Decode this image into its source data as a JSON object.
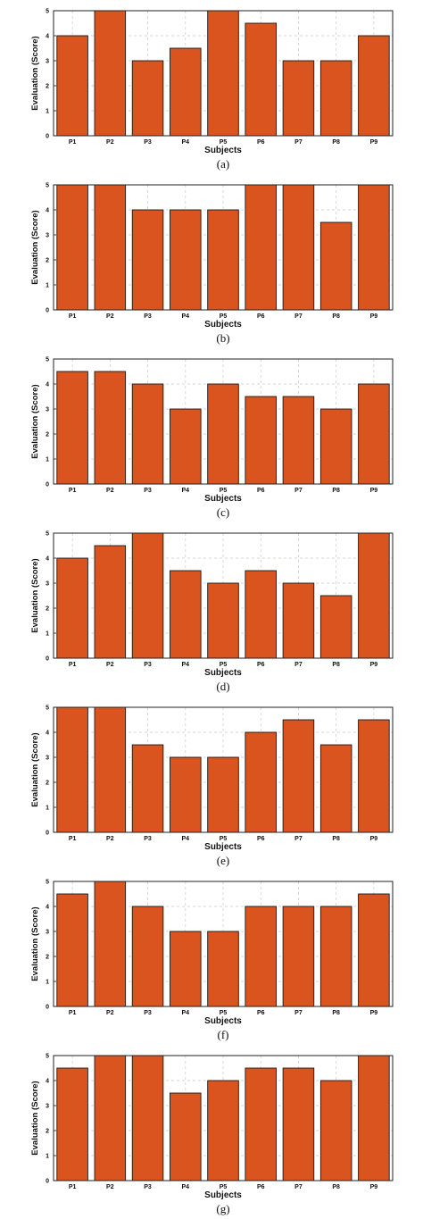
{
  "style": {
    "bar_color": "#d9541e",
    "grid": true
  },
  "chart_data": [
    {
      "type": "bar",
      "caption": "(a)",
      "xlabel": "Subjects",
      "ylabel": "Evaluation (Score)",
      "ylim": [
        0,
        5
      ],
      "yticks": [
        0,
        1,
        2,
        3,
        4,
        5
      ],
      "categories": [
        "P1",
        "P2",
        "P3",
        "P4",
        "P5",
        "P6",
        "P7",
        "P8",
        "P9"
      ],
      "values": [
        4,
        5,
        3,
        3.5,
        5,
        4.5,
        3,
        3,
        4
      ]
    },
    {
      "type": "bar",
      "caption": "(b)",
      "xlabel": "Subjects",
      "ylabel": "Evaluation (Score)",
      "ylim": [
        0,
        5
      ],
      "yticks": [
        0,
        1,
        2,
        3,
        4,
        5
      ],
      "categories": [
        "P1",
        "P2",
        "P3",
        "P4",
        "P5",
        "P6",
        "P7",
        "P8",
        "P9"
      ],
      "values": [
        5,
        5,
        4,
        4,
        4,
        5,
        5,
        3.5,
        5
      ]
    },
    {
      "type": "bar",
      "caption": "(c)",
      "xlabel": "Subjects",
      "ylabel": "Evaluation (Score)",
      "ylim": [
        0,
        5
      ],
      "yticks": [
        0,
        1,
        2,
        3,
        4,
        5
      ],
      "categories": [
        "P1",
        "P2",
        "P3",
        "P4",
        "P5",
        "P6",
        "P7",
        "P8",
        "P9"
      ],
      "values": [
        4.5,
        4.5,
        4,
        3,
        4,
        3.5,
        3.5,
        3,
        4
      ]
    },
    {
      "type": "bar",
      "caption": "(d)",
      "xlabel": "Subjects",
      "ylabel": "Evaluation (Score)",
      "ylim": [
        0,
        5
      ],
      "yticks": [
        0,
        1,
        2,
        3,
        4,
        5
      ],
      "categories": [
        "P1",
        "P2",
        "P3",
        "P4",
        "P5",
        "P6",
        "P7",
        "P8",
        "P9"
      ],
      "values": [
        4,
        4.5,
        5,
        3.5,
        3,
        3.5,
        3,
        2.5,
        5
      ]
    },
    {
      "type": "bar",
      "caption": "(e)",
      "xlabel": "Subjects",
      "ylabel": "Evaluation (Score)",
      "ylim": [
        0,
        5
      ],
      "yticks": [
        0,
        1,
        2,
        3,
        4,
        5
      ],
      "categories": [
        "P1",
        "P2",
        "P3",
        "P4",
        "P5",
        "P6",
        "P7",
        "P8",
        "P9"
      ],
      "values": [
        5,
        5,
        3.5,
        3,
        3,
        4,
        4.5,
        3.5,
        4.5
      ]
    },
    {
      "type": "bar",
      "caption": "(f)",
      "xlabel": "Subjects",
      "ylabel": "Evaluation (Score)",
      "ylim": [
        0,
        5
      ],
      "yticks": [
        0,
        1,
        2,
        3,
        4,
        5
      ],
      "categories": [
        "P1",
        "P2",
        "P3",
        "P4",
        "P5",
        "P6",
        "P7",
        "P8",
        "P9"
      ],
      "values": [
        4.5,
        5,
        4,
        3,
        3,
        4,
        4,
        4,
        4.5
      ]
    },
    {
      "type": "bar",
      "caption": "(g)",
      "xlabel": "Subjects",
      "ylabel": "Evaluation (Score)",
      "ylim": [
        0,
        5
      ],
      "yticks": [
        0,
        1,
        2,
        3,
        4,
        5
      ],
      "categories": [
        "P1",
        "P2",
        "P3",
        "P4",
        "P5",
        "P6",
        "P7",
        "P8",
        "P9"
      ],
      "values": [
        4.5,
        5,
        5,
        3.5,
        4,
        4.5,
        4.5,
        4,
        5
      ]
    }
  ]
}
